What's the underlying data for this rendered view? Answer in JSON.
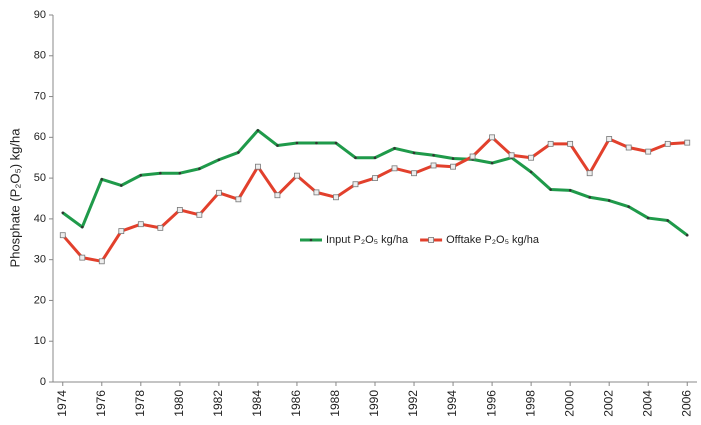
{
  "chart_data": {
    "type": "line",
    "y_label": "Phosphate (P₂O₅) kg/ha",
    "x": [
      1974,
      1975,
      1976,
      1977,
      1978,
      1979,
      1980,
      1981,
      1982,
      1983,
      1984,
      1985,
      1986,
      1987,
      1988,
      1989,
      1990,
      1991,
      1992,
      1993,
      1994,
      1995,
      1996,
      1997,
      1998,
      1999,
      2000,
      2001,
      2002,
      2003,
      2004,
      2005,
      2006
    ],
    "series": [
      {
        "name": "Input P₂O₅ kg/ha",
        "color": "#1f9a4a",
        "marker": "dot",
        "values": [
          41.5,
          38,
          49.7,
          48.2,
          50.7,
          51.2,
          51.2,
          52.3,
          54.5,
          56.3,
          61.7,
          58,
          58.6,
          58.6,
          58.6,
          55,
          55,
          57.3,
          56.2,
          55.6,
          54.8,
          54.6,
          53.7,
          55,
          51.5,
          47.2,
          47,
          45.3,
          44.5,
          43,
          40.2,
          39.6,
          36
        ]
      },
      {
        "name": "Offtake P₂O₅ kg/ha",
        "color": "#e2402c",
        "marker": "square",
        "values": [
          36,
          30.5,
          29.6,
          37,
          38.7,
          37.8,
          42.2,
          41,
          46.4,
          44.8,
          52.8,
          45.8,
          50.6,
          46.5,
          45.3,
          48.5,
          50,
          52.4,
          51.2,
          53.1,
          52.8,
          55.3,
          60,
          55.6,
          55,
          58.4,
          58.4,
          51.2,
          59.6,
          57.5,
          56.5,
          58.4,
          58.7
        ]
      }
    ],
    "xlim": [
      1973.5,
      2006.5
    ],
    "xticks": [
      1974,
      1976,
      1978,
      1980,
      1982,
      1984,
      1986,
      1988,
      1990,
      1992,
      1994,
      1996,
      1998,
      2000,
      2002,
      2004,
      2006
    ],
    "ylim": [
      0,
      90
    ],
    "yticks": [
      0,
      10,
      20,
      30,
      40,
      50,
      60,
      70,
      80,
      90
    ],
    "grid": false,
    "legend": "center"
  }
}
